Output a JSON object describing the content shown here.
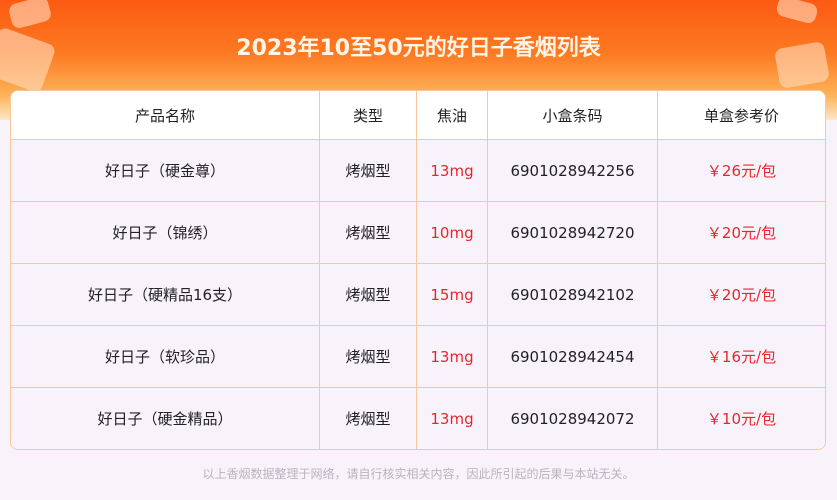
{
  "title": "2023年10至50元的好日子香烟列表",
  "columns": [
    "产品名称",
    "类型",
    "焦油",
    "小盒条码",
    "单盒参考价"
  ],
  "rows": [
    {
      "name": "好日子（硬金尊）",
      "type": "烤烟型",
      "tar": "13mg",
      "barcode": "6901028942256",
      "price": "￥26元/包"
    },
    {
      "name": "好日子（锦绣）",
      "type": "烤烟型",
      "tar": "10mg",
      "barcode": "6901028942720",
      "price": "￥20元/包"
    },
    {
      "name": "好日子（硬精品16支）",
      "type": "烤烟型",
      "tar": "15mg",
      "barcode": "6901028942102",
      "price": "￥20元/包"
    },
    {
      "name": "好日子（软珍品）",
      "type": "烤烟型",
      "tar": "13mg",
      "barcode": "6901028942454",
      "price": "￥16元/包"
    },
    {
      "name": "好日子（硬金精品）",
      "type": "烤烟型",
      "tar": "13mg",
      "barcode": "6901028942072",
      "price": "￥10元/包"
    }
  ],
  "footer": "以上香烟数据整理于网络，请自行核实相关内容，因此所引起的后果与本站无关。",
  "colors": {
    "accent": "#fc5a12",
    "price": "#e8262a",
    "border": "#f6c89c"
  }
}
